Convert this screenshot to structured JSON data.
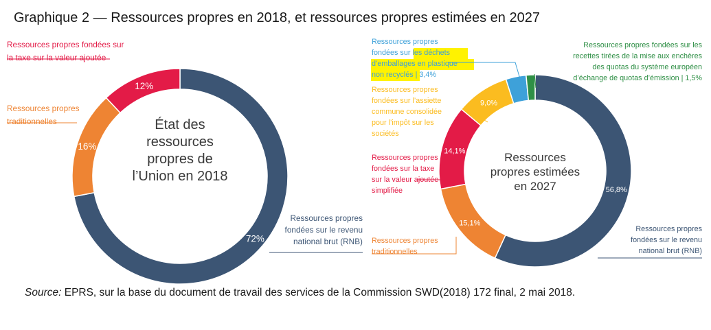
{
  "title": "Graphique 2 — Ressources propres en 2018, et ressources propres estimées en 2027",
  "source": {
    "label": "Source:",
    "text": " EPRS, sur la base du document de travail des services de la Commission SWD(2018) 172 final, 2 mai 2018."
  },
  "colors": {
    "rnb": "#3c5574",
    "traditionnelles": "#ee8433",
    "tva": "#e31b47",
    "assiette": "#fbbc20",
    "plastique": "#3ea1d9",
    "ets": "#2f8f46",
    "highlight": "#fff200"
  },
  "chart_data": [
    {
      "type": "pie",
      "variant": "donut",
      "center_label": [
        "État des",
        "ressources",
        "propres de",
        "l’Union en 2018"
      ],
      "slices": [
        {
          "key": "rnb",
          "value": 72,
          "display": "72%",
          "label": [
            "Ressources propres",
            "fondées sur le revenu",
            "national brut (RNB)"
          ]
        },
        {
          "key": "traditionnelles",
          "value": 16,
          "display": "16%",
          "label": [
            "Ressources propres",
            "traditionnelles"
          ]
        },
        {
          "key": "tva",
          "value": 12,
          "display": "12%",
          "label": [
            "Ressources propres fondées sur",
            "la taxe sur la valeur ajoutée"
          ]
        }
      ]
    },
    {
      "type": "pie",
      "variant": "donut",
      "center_label": [
        "Ressources",
        "propres estimées",
        "en 2027"
      ],
      "slices": [
        {
          "key": "rnb",
          "value": 56.8,
          "display": "56,8%",
          "label": [
            "Ressources propres",
            "fondées sur le revenu",
            "national brut (RNB)"
          ]
        },
        {
          "key": "traditionnelles",
          "value": 15.1,
          "display": "15,1%",
          "label": [
            "Ressources propres",
            "traditionnelles"
          ]
        },
        {
          "key": "tva",
          "value": 14.1,
          "display": "14,1%",
          "label": [
            "Ressources propres",
            "fondées sur la taxe",
            "sur la valeur ajoutée",
            "simplifiée"
          ]
        },
        {
          "key": "assiette",
          "value": 9.0,
          "display": "9,0%",
          "label": [
            "Ressources propres",
            "fondées sur l’assiette",
            "commune consolidée",
            "pour l’impôt sur les",
            "sociétés"
          ]
        },
        {
          "key": "plastique",
          "value": 3.4,
          "display": "3,4%",
          "label": [
            "Ressources propres",
            "fondées sur les déchets",
            "d’emballages en plastique",
            "non recyclés | 3,4%"
          ]
        },
        {
          "key": "ets",
          "value": 1.5,
          "display": "1,5%",
          "label": [
            "Ressources propres fondées sur les",
            "recettes tirées de la mise aux enchères",
            "des quotas du système européen",
            "d’échange de quotas d’émission | 1,5%"
          ]
        }
      ]
    }
  ]
}
